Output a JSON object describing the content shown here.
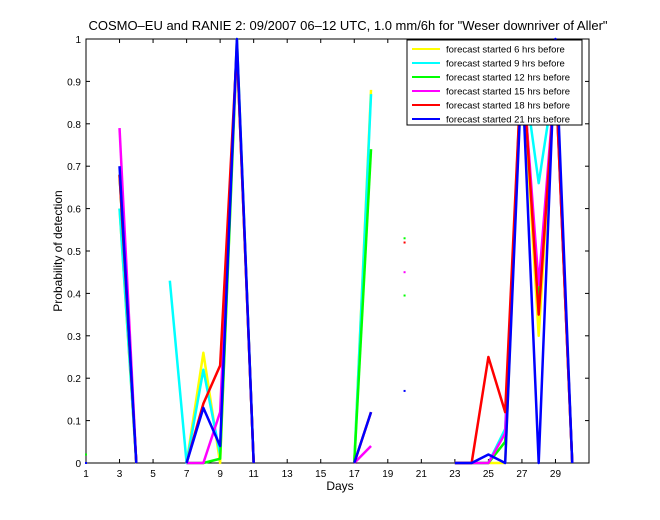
{
  "chart_data": {
    "type": "line",
    "title": "COSMO–EU and RANIE 2: 09/2007 06–12 UTC, 1.0 mm/6h for \"Weser downriver of Aller\"",
    "xlabel": "Days",
    "ylabel": "Probability of detection",
    "xlim": [
      1,
      31
    ],
    "ylim": [
      0,
      1
    ],
    "x_ticks": [
      "1",
      "3",
      "5",
      "7",
      "9",
      "11",
      "13",
      "15",
      "17",
      "19",
      "21",
      "23",
      "25",
      "27",
      "29"
    ],
    "y_ticks": [
      "0",
      "0.1",
      "0.2",
      "0.3",
      "0.4",
      "0.5",
      "0.6",
      "0.7",
      "0.8",
      "0.9",
      "1"
    ],
    "grid": false,
    "legend_position": "top-right",
    "x": [
      1,
      2,
      3,
      4,
      5,
      6,
      7,
      8,
      9,
      10,
      11,
      12,
      13,
      14,
      15,
      16,
      17,
      18,
      19,
      20,
      21,
      22,
      23,
      24,
      25,
      26,
      27,
      28,
      29,
      30,
      31
    ],
    "series": [
      {
        "name": "forecast started 6 hrs before",
        "color": "#ffff00",
        "values": [
          0,
          null,
          0.6,
          0,
          null,
          null,
          0,
          0.26,
          0,
          1,
          0,
          null,
          null,
          null,
          null,
          null,
          0,
          0.88,
          null,
          null,
          null,
          null,
          0,
          0,
          0,
          0,
          0.95,
          0.3,
          0.93,
          0,
          null
        ]
      },
      {
        "name": "forecast started 9 hrs before",
        "color": "#00ffff",
        "values": [
          0,
          null,
          0.6,
          0,
          null,
          0.43,
          0,
          0.22,
          0.02,
          1,
          0,
          null,
          null,
          null,
          null,
          null,
          0,
          0.87,
          null,
          null,
          null,
          null,
          0,
          0,
          0,
          0.08,
          0.95,
          0.66,
          0.92,
          0,
          null
        ]
      },
      {
        "name": "forecast started 12 hrs before",
        "color": "#00ff00",
        "values": [
          0.02,
          null,
          0.68,
          0,
          null,
          null,
          0,
          0,
          0.01,
          0.98,
          0,
          null,
          null,
          null,
          null,
          null,
          0,
          0.74,
          null,
          0.53,
          null,
          null,
          0,
          0,
          0,
          0.05,
          0.97,
          0.37,
          0.93,
          0,
          null
        ]
      },
      {
        "name": "forecast started 15 hrs before",
        "color": "#ff00ff",
        "values": [
          0,
          null,
          0.79,
          0,
          null,
          null,
          0,
          0,
          0.12,
          0.98,
          0,
          null,
          null,
          null,
          null,
          null,
          0,
          0.04,
          null,
          0.45,
          null,
          null,
          0,
          0,
          0,
          0.07,
          0.95,
          0.42,
          0.92,
          0,
          null
        ]
      },
      {
        "name": "forecast started 18 hrs before",
        "color": "#ff0000",
        "values": [
          0,
          null,
          0.68,
          0,
          null,
          null,
          0,
          0.14,
          0.23,
          0.98,
          0,
          null,
          null,
          null,
          null,
          null,
          0,
          0.12,
          null,
          0.52,
          null,
          null,
          0,
          0,
          0.25,
          0.12,
          0.96,
          0.35,
          0.92,
          0,
          null
        ]
      },
      {
        "name": "forecast started 21 hrs before",
        "color": "#0000ff",
        "values": [
          0,
          null,
          0.7,
          0,
          null,
          null,
          0,
          0.13,
          0.04,
          1,
          0,
          null,
          null,
          null,
          null,
          null,
          0,
          0.12,
          null,
          0.17,
          null,
          null,
          0,
          0,
          0.02,
          0,
          0.93,
          0,
          1,
          0,
          null
        ]
      }
    ],
    "isolated_markers": [
      {
        "x": 20,
        "y": 0.395,
        "color": "#00ff00"
      }
    ]
  }
}
